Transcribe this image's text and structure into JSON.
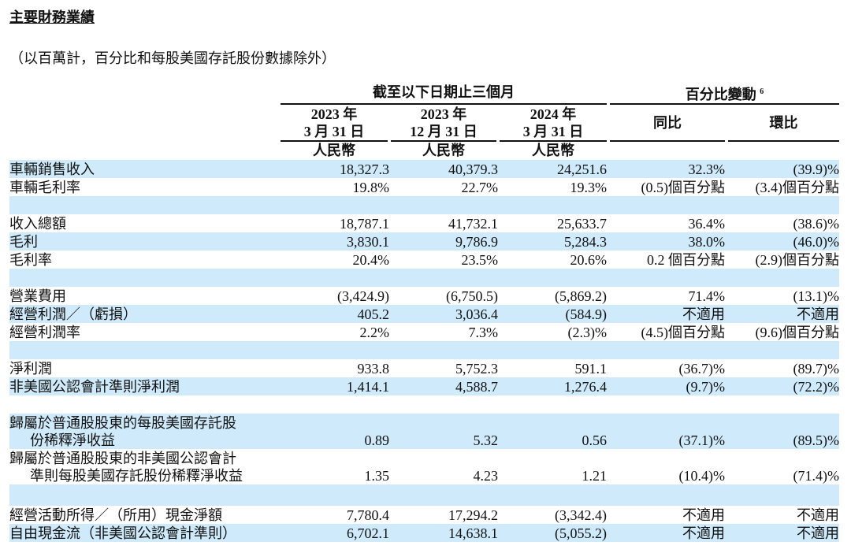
{
  "title": "主要財務業績",
  "subtitle": "（以百萬計，百分比和每股美國存託股份數據除外）",
  "header": {
    "period_group": "截至以下日期止三個月",
    "change_group": "百分比變動",
    "change_footnote": "6",
    "columns": [
      {
        "year": "2023 年",
        "date": "3 月 31 日",
        "currency": "人民幣"
      },
      {
        "year": "2023 年",
        "date": "12 月 31 日",
        "currency": "人民幣"
      },
      {
        "year": "2024 年",
        "date": "3 月 31 日",
        "currency": "人民幣"
      }
    ],
    "yoy": "同比",
    "qoq": "環比"
  },
  "rows": [
    {
      "label": [
        "車輛銷售收入"
      ],
      "values": [
        "18,327.3",
        "40,379.3",
        "24,251.6",
        "32.3%",
        "(39.9)%"
      ]
    },
    {
      "label": [
        "車輛毛利率"
      ],
      "values": [
        "19.8%",
        "22.7%",
        "19.3%",
        "(0.5)個百分點",
        "(3.4)個百分點"
      ]
    },
    {
      "spacer": true
    },
    {
      "label": [
        "收入總額"
      ],
      "values": [
        "18,787.1",
        "41,732.1",
        "25,633.7",
        "36.4%",
        "(38.6)%"
      ]
    },
    {
      "label": [
        "毛利"
      ],
      "values": [
        "3,830.1",
        "9,786.9",
        "5,284.3",
        "38.0%",
        "(46.0)%"
      ]
    },
    {
      "label": [
        "毛利率"
      ],
      "values": [
        "20.4%",
        "23.5%",
        "20.6%",
        "0.2 個百分點",
        "(2.9)個百分點"
      ]
    },
    {
      "spacer": true
    },
    {
      "label": [
        "營業費用"
      ],
      "values": [
        "(3,424.9)",
        "(6,750.5)",
        "(5,869.2)",
        "71.4%",
        "(13.1)%"
      ]
    },
    {
      "label": [
        "經營利潤／（虧損）"
      ],
      "values": [
        "405.2",
        "3,036.4",
        "(584.9)",
        "不適用",
        "不適用"
      ]
    },
    {
      "label": [
        "經營利潤率"
      ],
      "values": [
        "2.2%",
        "7.3%",
        "(2.3)%",
        "(4.5)個百分點",
        "(9.6)個百分點"
      ]
    },
    {
      "spacer": true
    },
    {
      "label": [
        "淨利潤"
      ],
      "values": [
        "933.8",
        "5,752.3",
        "591.1",
        "(36.7)%",
        "(89.7)%"
      ]
    },
    {
      "label": [
        "非美國公認會計準則淨利潤"
      ],
      "values": [
        "1,414.1",
        "4,588.7",
        "1,276.4",
        "(9.7)%",
        "(72.2)%"
      ]
    },
    {
      "spacer": true
    },
    {
      "label": [
        "歸屬於普通股股東的每股美國存託股",
        "份稀釋淨收益"
      ],
      "values": [
        "0.89",
        "5.32",
        "0.56",
        "(37.1)%",
        "(89.5)%"
      ]
    },
    {
      "label": [
        "歸屬於普通股股東的非美國公認會計",
        "準則每股美國存託股份稀釋淨收益"
      ],
      "values": [
        "1.35",
        "4.23",
        "1.21",
        "(10.4)%",
        "(71.4)%"
      ]
    },
    {
      "spacer": true,
      "tall": true
    },
    {
      "label": [
        "經營活動所得／（所用）現金淨額"
      ],
      "values": [
        "7,780.4",
        "17,294.2",
        "(3,342.4)",
        "不適用",
        "不適用"
      ]
    },
    {
      "label": [
        "自由現金流（非美國公認會計準則）"
      ],
      "values": [
        "6,702.1",
        "14,638.1",
        "(5,055.2)",
        "不適用",
        "不適用"
      ]
    }
  ],
  "colors": {
    "row_shade": "#cfeafb"
  }
}
